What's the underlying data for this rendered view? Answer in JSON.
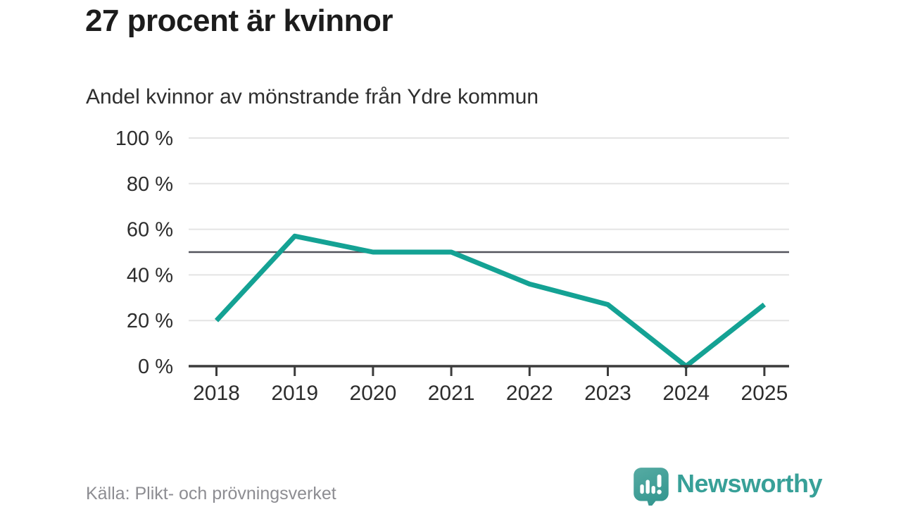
{
  "header": {
    "title": "27 procent är kvinnor",
    "subtitle": "Andel kvinnor av mönstrande från Ydre kommun"
  },
  "chart_data": {
    "type": "line",
    "title": "27 procent är kvinnor",
    "subtitle": "Andel kvinnor av mönstrande från Ydre kommun",
    "x": [
      "2018",
      "2019",
      "2020",
      "2021",
      "2022",
      "2023",
      "2024",
      "2025"
    ],
    "series": [
      {
        "name": "Andel kvinnor av mönstrande",
        "values": [
          20,
          57,
          50,
          50,
          36,
          27,
          0,
          27
        ],
        "color": "#14a294"
      }
    ],
    "unit": "%",
    "ylim": [
      0,
      100
    ],
    "yticks": [
      0,
      20,
      40,
      60,
      80,
      100
    ],
    "ytick_suffix": " %",
    "reference_line": {
      "value": 50,
      "color": "#53545c"
    },
    "grid": "horizontal",
    "gridline_color": "#e4e4e4",
    "axis_color": "#3b3b3b",
    "tick_label_color": "#2d2d2d",
    "legend": "none",
    "markers": "none"
  },
  "footer": {
    "source": "Källa: Plikt- och prövningsverket",
    "logo": {
      "text": "Newsworthy",
      "color": "#38a098",
      "icon": "newsworthy-speech-bubble-barchart-icon"
    }
  }
}
